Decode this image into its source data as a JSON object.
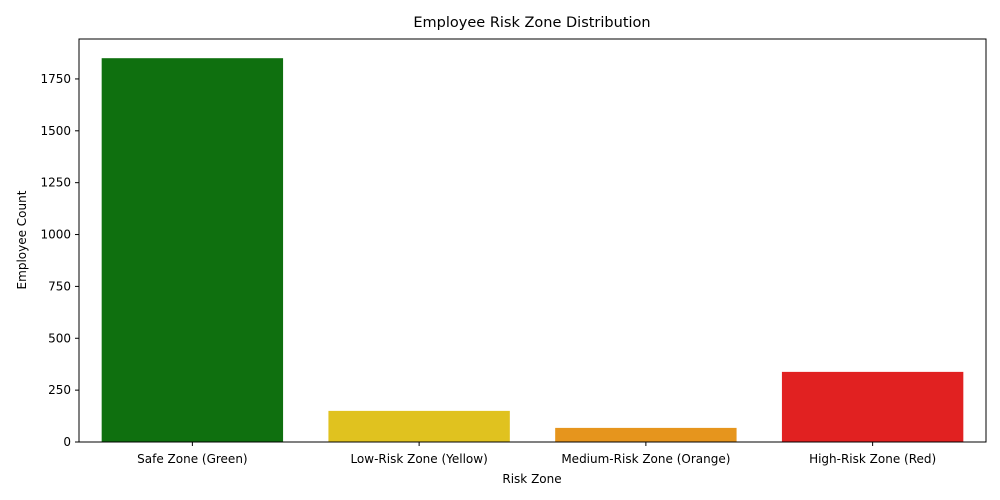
{
  "chart_data": {
    "type": "bar",
    "title": "Employee Risk Zone Distribution",
    "xlabel": "Risk Zone",
    "ylabel": "Employee Count",
    "categories": [
      "Safe Zone (Green)",
      "Low-Risk Zone (Yellow)",
      "Medium-Risk Zone (Orange)",
      "High-Risk Zone (Red)"
    ],
    "values": [
      1850,
      150,
      68,
      338
    ],
    "colors": [
      "#0f700f",
      "#e0c21f",
      "#e6951d",
      "#e12121"
    ],
    "ylim": [
      0,
      1942.5
    ],
    "yticks": [
      0,
      250,
      500,
      750,
      1000,
      1250,
      1500,
      1750
    ],
    "grid": false,
    "legend": "none"
  }
}
